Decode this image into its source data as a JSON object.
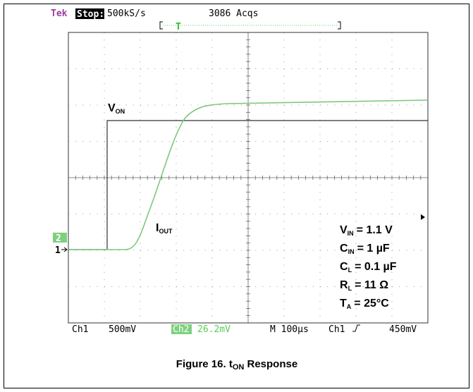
{
  "header": {
    "brand": "Tek",
    "state": "Stop:",
    "rate": "500kS/s",
    "acqs": "3086 Acqs"
  },
  "trigger_marker": "T",
  "channel_markers": [
    "2",
    "1"
  ],
  "traces": [
    {
      "label": "V",
      "sub": "ON"
    },
    {
      "label": "I",
      "sub": "OUT"
    }
  ],
  "conditions": [
    {
      "symbol": "V",
      "sub": "IN",
      "value": "= 1.1 V"
    },
    {
      "symbol": "C",
      "sub": "IN",
      "value": "= 1 µF"
    },
    {
      "symbol": "C",
      "sub": "L",
      "value": "= 0.1 µF"
    },
    {
      "symbol": "R",
      "sub": "L",
      "value": "= 11 Ω"
    },
    {
      "symbol": "T",
      "sub": "A",
      "value": "= 25°C"
    }
  ],
  "footer": {
    "ch1": "Ch1",
    "ch1_scale": "500mV",
    "ch2": "Ch2",
    "ch2_scale": "26.2mV",
    "timebase": "M 100µs",
    "trigger_source": "Ch1",
    "trigger_level": "450mV"
  },
  "caption": {
    "prefix": "Figure 16. t",
    "sub": "ON",
    "suffix": " Response"
  }
}
